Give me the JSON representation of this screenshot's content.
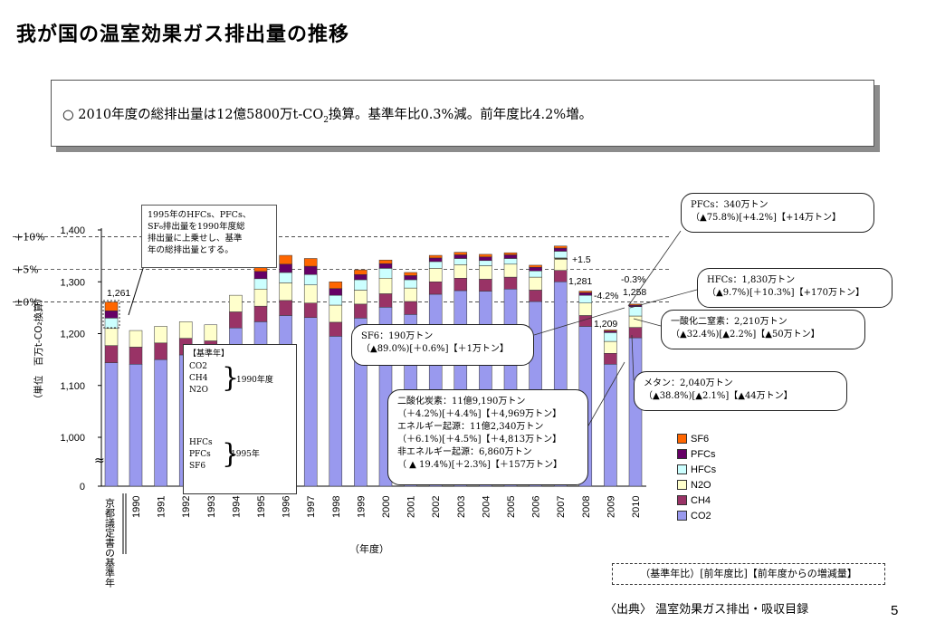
{
  "page": {
    "title": "我が国の温室効果ガス排出量の推移",
    "summary_pre": "○ 2010年度の総排出量は12億5800万t-CO",
    "summary_sub": "2",
    "summary_post": "換算。基準年比0.3%減。前年度比4.2%増。",
    "page_number": "5",
    "source": "〈出典〉 温室効果ガス排出・吸収目録",
    "legend_note_box": "（基準年比）[前年度比]【前年度からの増減量】"
  },
  "colors": {
    "CO2": "#9999ee",
    "CH4": "#993366",
    "N2O": "#ffffcc",
    "HFCs": "#ccffff",
    "PFCs": "#660066",
    "SF6": "#ff6600"
  },
  "chart_data": {
    "type": "bar",
    "stacked": true,
    "ylabel": "（単位　百万t-CO₂換算）",
    "xlabel": "（年度）",
    "y_ticks": [
      "1,400",
      "1,300",
      "1,200",
      "1,100",
      "1,000",
      "0"
    ],
    "ylim": [
      1000,
      1400
    ],
    "y_axis_break": true,
    "categories": [
      "京都議定書の基準年",
      "1990",
      "1991",
      "1992",
      "1993",
      "1994",
      "1995",
      "1996",
      "1997",
      "1998",
      "1999",
      "2000",
      "2001",
      "2002",
      "2003",
      "2004",
      "2005",
      "2006",
      "2007",
      "2008",
      "2009",
      "2010"
    ],
    "series": [
      {
        "name": "CO2",
        "values": [
          1144,
          1141,
          1150,
          1159,
          1154,
          1211,
          1223,
          1235,
          1231,
          1195,
          1230,
          1251,
          1237,
          1276,
          1283,
          1282,
          1286,
          1262,
          1300,
          1214,
          1141,
          1192
        ]
      },
      {
        "name": "CH4",
        "values": [
          33,
          33,
          32,
          32,
          32,
          31,
          30,
          29,
          28,
          27,
          27,
          26,
          25,
          24,
          24,
          23,
          23,
          22,
          22,
          21,
          21,
          20
        ]
      },
      {
        "name": "N2O",
        "values": [
          33,
          32,
          32,
          32,
          31,
          32,
          33,
          34,
          35,
          33,
          27,
          30,
          26,
          26,
          26,
          26,
          25,
          25,
          24,
          24,
          23,
          22
        ]
      },
      {
        "name": "HFCs",
        "values": [
          20,
          0,
          0,
          0,
          0,
          0,
          20,
          20,
          20,
          19,
          20,
          19,
          16,
          13,
          12,
          10,
          11,
          12,
          13,
          15,
          17,
          18
        ]
      },
      {
        "name": "PFCs",
        "values": [
          14,
          0,
          0,
          0,
          0,
          0,
          14,
          16,
          16,
          13,
          10,
          9,
          8,
          7,
          7,
          7,
          7,
          7,
          6,
          5,
          3,
          3
        ]
      },
      {
        "name": "SF6",
        "values": [
          17,
          0,
          0,
          0,
          0,
          0,
          17,
          17,
          15,
          13,
          9,
          7,
          6,
          5,
          5,
          5,
          4,
          4,
          4,
          3,
          2,
          2
        ]
      }
    ],
    "reference_lines": [
      {
        "label": "+10%",
        "value": 1387
      },
      {
        "label": "+5%",
        "value": 1324
      },
      {
        "label": "±0%",
        "value": 1261
      }
    ],
    "annotations": [
      "1,261",
      "+1.5",
      "1,281",
      "-0.3%",
      "-4.2%",
      "1,258",
      "1,209"
    ]
  },
  "callouts": {
    "note_1995": [
      "1995年のHFCs、PFCs、",
      "SF₆排出量を1990年度総",
      "排出量に上乗せし、基準",
      "年の総排出量とする。"
    ],
    "pfcs": [
      "PFCs：340万トン",
      "（▲75.8%)[+4.2%]【+14万トン】"
    ],
    "hfcs": [
      "HFCs：1,830万トン",
      "（▲9.7%)[＋10.3%]【+170万トン】"
    ],
    "n2o": [
      "一酸化二窒素：2,210万トン",
      "（▲32.4%)[▲2.2%]【▲50万トン】"
    ],
    "ch4": [
      "メタン：2,040万トン",
      "（▲38.8%)[▲2.1%]【▲44万トン】"
    ],
    "sf6": [
      "SF6：190万トン",
      "（▲89.0%)[＋0.6%]【＋1万トン】"
    ],
    "co2": [
      "二酸化炭素：11億9,190万トン",
      "（＋4.2%)[＋4.4%]【＋4,969万トン】",
      "エネルギー起源：11億2,340万トン",
      "（＋6.1%)[＋4.5%]【＋4,813万トン】",
      "非エネルギー起源：6,860万トン",
      "（ ▲ 19.4%)[＋2.3%]【＋157万トン】"
    ]
  },
  "base_year_note": {
    "title": "【基準年】",
    "group1": [
      "CO2",
      "CH4",
      "N2O"
    ],
    "group1_label": "1990年度",
    "group2": [
      "HFCs",
      "PFCs",
      "SF6"
    ],
    "group2_label": "1995年"
  },
  "legend": [
    "SF6",
    "PFCs",
    "HFCs",
    "N2O",
    "CH4",
    "CO2"
  ]
}
